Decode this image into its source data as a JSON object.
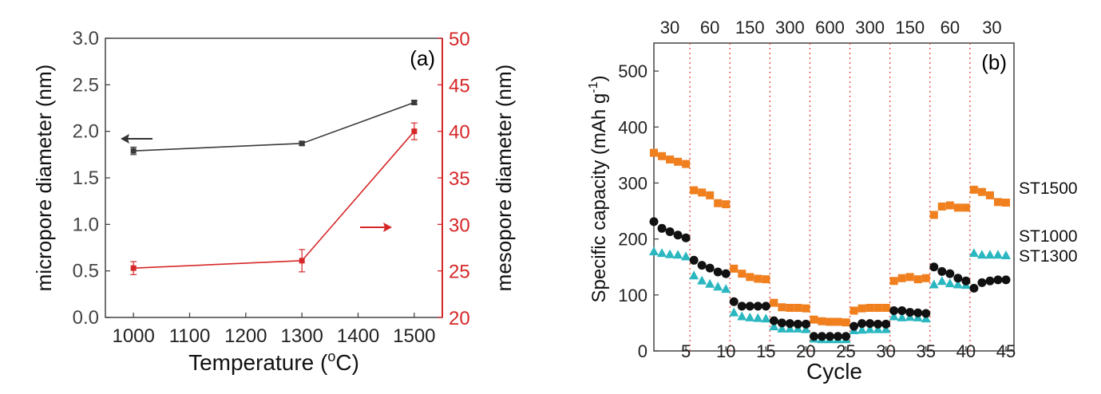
{
  "chart_data": [
    {
      "type": "line",
      "panel_label": "(a)",
      "xlabel": "Temperature (",
      "xlabel_sup": "o",
      "xlabel_suffix": "C)",
      "ylabel_left": "micropore diameter (nm)",
      "ylabel_right": "mesopore diameter (nm)",
      "xlim": [
        950,
        1550
      ],
      "ylim_left": [
        0,
        3.0
      ],
      "ylim_right": [
        20,
        50
      ],
      "x_ticks": [
        1000,
        1100,
        1200,
        1300,
        1400,
        1500
      ],
      "y_ticks_left": [
        "0.0",
        "0.5",
        "1.0",
        "1.5",
        "2.0",
        "2.5",
        "3.0"
      ],
      "y_ticks_right": [
        "20",
        "25",
        "30",
        "35",
        "40",
        "45",
        "50"
      ],
      "series": [
        {
          "axis": "left",
          "color": "#3a3a3a",
          "x": [
            1000,
            1300,
            1500
          ],
          "y": [
            1.79,
            1.87,
            2.31
          ],
          "err": [
            0.04,
            0.02,
            0.02
          ]
        },
        {
          "axis": "right",
          "color": "#d62728",
          "x": [
            1000,
            1300,
            1500
          ],
          "y": [
            25.3,
            26.1,
            40.0
          ],
          "err": [
            0.7,
            1.2,
            0.9
          ]
        }
      ],
      "colors": {
        "left_axis": "#444444",
        "right_axis": "#d62728"
      }
    },
    {
      "type": "scatter",
      "panel_label": "(b)",
      "xlabel": "Cycle",
      "ylabel": "Specific capacity (mAh g",
      "ylabel_sup": "-1",
      "ylabel_suffix": ")",
      "xlim": [
        1,
        46
      ],
      "ylim": [
        0,
        550
      ],
      "x_ticks": [
        5,
        10,
        15,
        20,
        25,
        30,
        35,
        40,
        45
      ],
      "y_ticks": [
        0,
        100,
        200,
        300,
        400,
        500
      ],
      "rate_labels": [
        "30",
        "60",
        "150",
        "300",
        "600",
        "300",
        "150",
        "60",
        "30"
      ],
      "separators": [
        5.5,
        10.5,
        15.5,
        20.5,
        25.5,
        30.5,
        35.5,
        40.5
      ],
      "series": [
        {
          "name": "ST1500",
          "marker": "square",
          "color": "#f07f1e",
          "values": [
            354,
            348,
            342,
            338,
            334,
            287,
            283,
            278,
            264,
            262,
            147,
            138,
            132,
            129,
            128,
            86,
            78,
            77,
            77,
            76,
            56,
            53,
            52,
            52,
            51,
            72,
            76,
            77,
            77,
            77,
            125,
            130,
            132,
            128,
            130,
            243,
            258,
            260,
            256,
            256,
            288,
            284,
            278,
            266,
            265
          ]
        },
        {
          "name": "ST1000",
          "marker": "triangle",
          "color": "#2ab7c0",
          "values": [
            178,
            175,
            173,
            172,
            169,
            135,
            126,
            120,
            115,
            111,
            69,
            62,
            60,
            59,
            58,
            44,
            40,
            40,
            40,
            39,
            22,
            21,
            21,
            21,
            21,
            37,
            38,
            39,
            39,
            39,
            62,
            60,
            61,
            60,
            58,
            119,
            125,
            121,
            119,
            118,
            175,
            172,
            172,
            172,
            171
          ]
        },
        {
          "name": "ST1300",
          "marker": "circle",
          "color": "#111111",
          "values": [
            231,
            219,
            213,
            207,
            202,
            162,
            153,
            148,
            141,
            138,
            88,
            80,
            80,
            80,
            80,
            54,
            50,
            49,
            48,
            48,
            26,
            26,
            26,
            26,
            26,
            44,
            49,
            49,
            48,
            48,
            72,
            72,
            69,
            68,
            67,
            150,
            142,
            138,
            130,
            125,
            112,
            122,
            125,
            127,
            127
          ]
        }
      ]
    }
  ]
}
